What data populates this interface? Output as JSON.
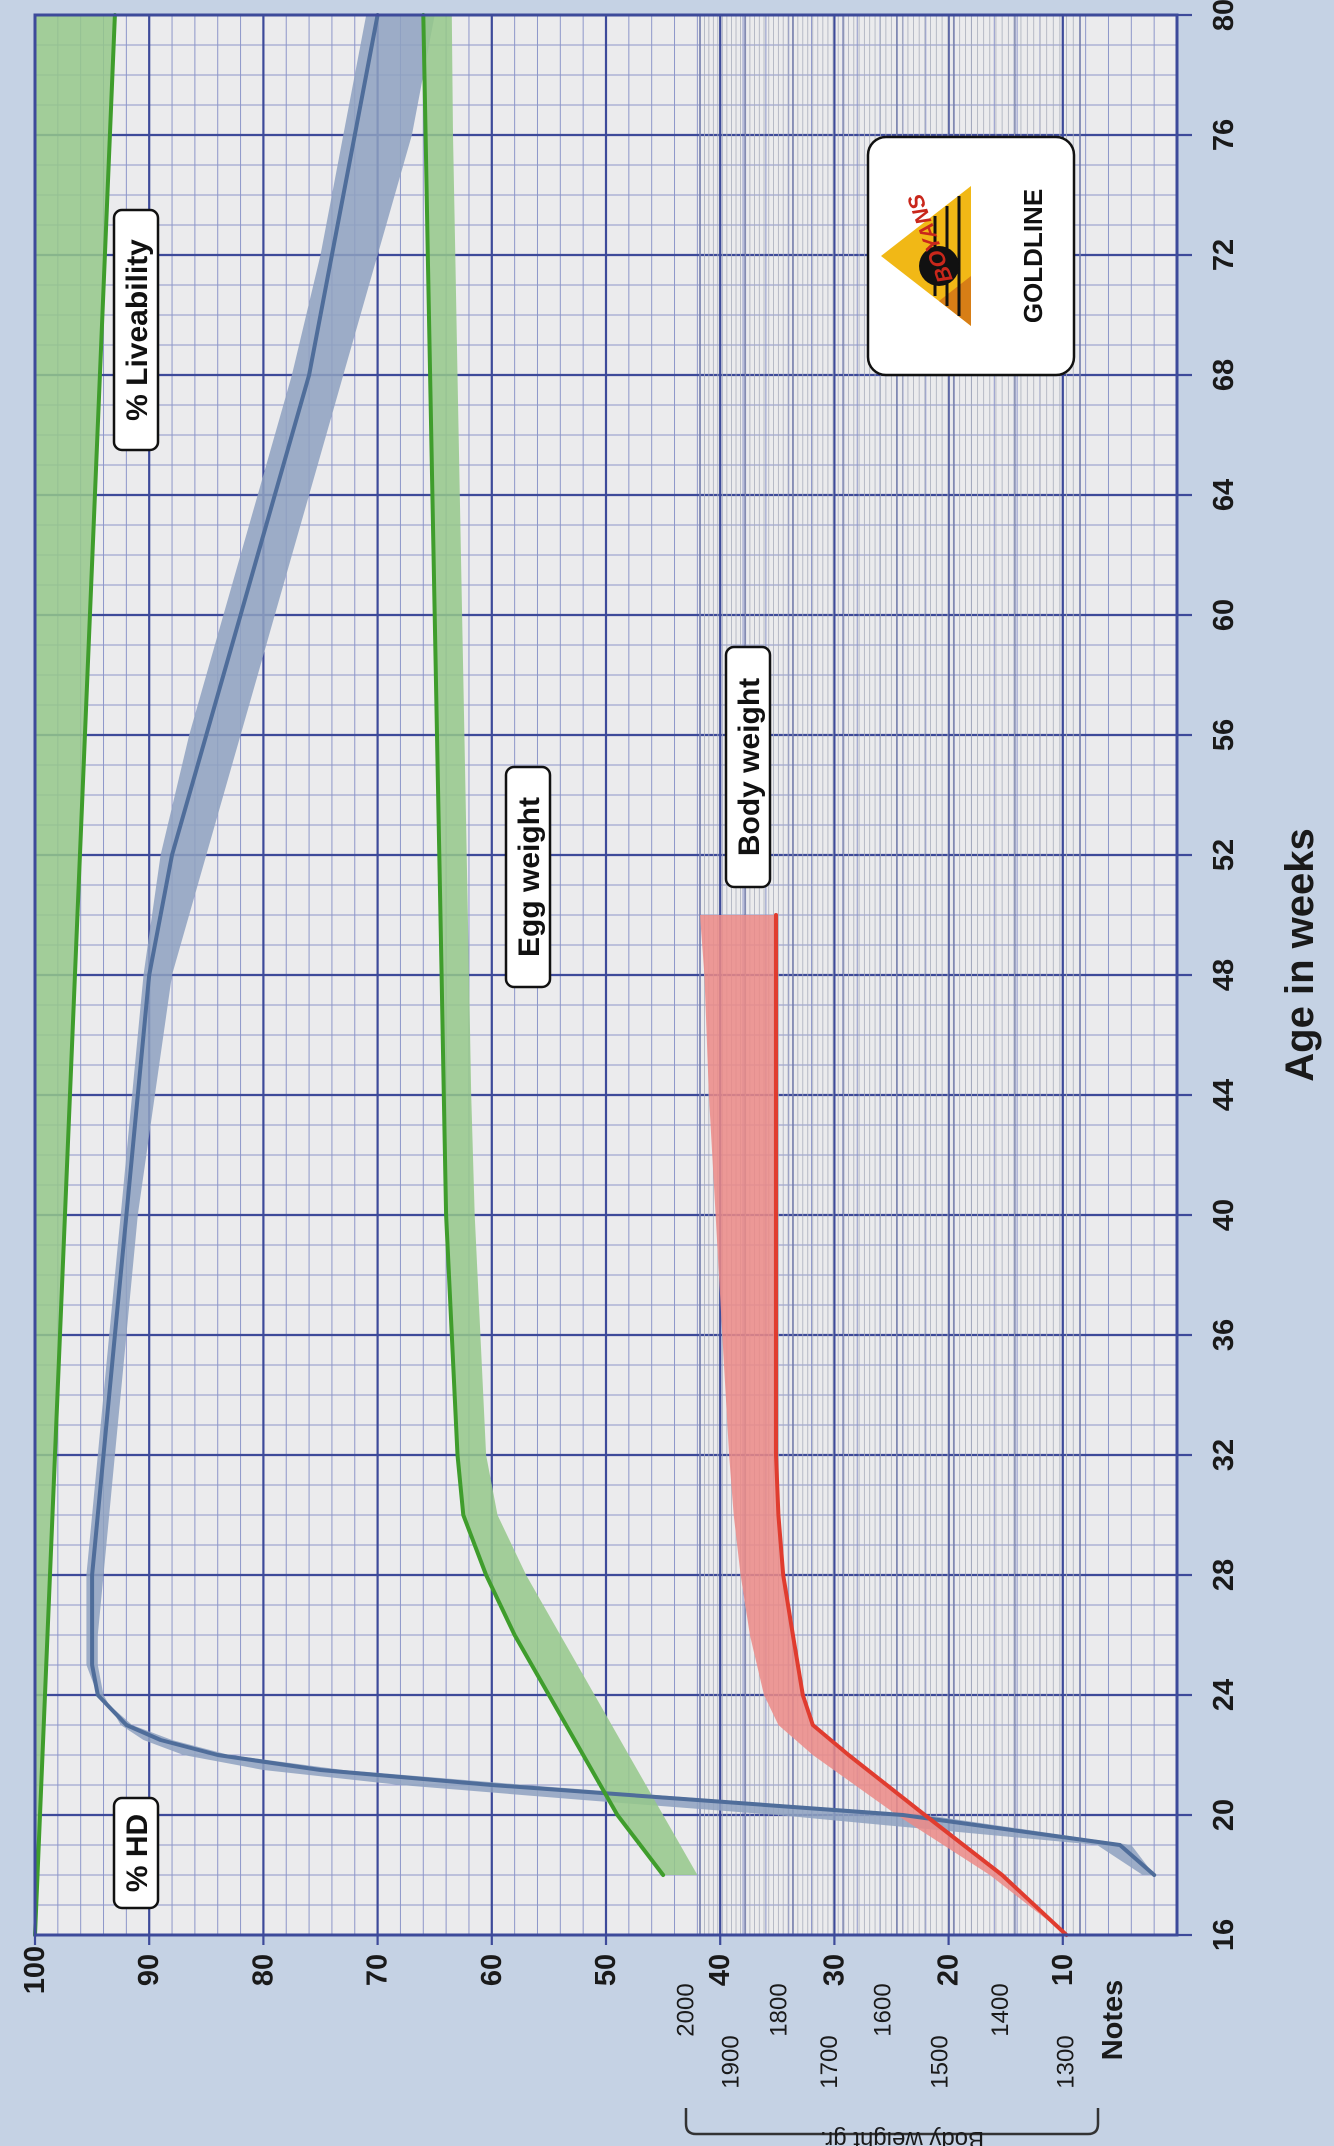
{
  "chart_data": {
    "type": "line",
    "orientation": "rotated-90-ccw",
    "xlabel": "Age in weeks",
    "x_ticks": [
      16,
      20,
      24,
      28,
      32,
      36,
      40,
      44,
      48,
      52,
      56,
      60,
      64,
      68,
      72,
      76,
      80
    ],
    "xlim": [
      16,
      80
    ],
    "y_ticks": [
      100,
      90,
      80,
      70,
      60,
      50,
      40,
      30,
      20,
      10
    ],
    "ylim": [
      0,
      100
    ],
    "body_weight_axis": {
      "label": "Body weight gr.",
      "ticks_inner": [
        2000,
        1800,
        1600,
        1400
      ],
      "ticks_outer": [
        1900,
        1700,
        1500,
        1300
      ]
    },
    "notes_label": "Notes",
    "brand": {
      "name": "BOYANS",
      "line": "GOLDLINE"
    },
    "series": [
      {
        "name": "% HD",
        "color": "#4f6d9a",
        "band_color": "#8ea1c0",
        "x": [
          18,
          19,
          20,
          20.5,
          21,
          21.5,
          22,
          22.5,
          23,
          24,
          25,
          26,
          28,
          32,
          36,
          40,
          44,
          48,
          52,
          56,
          60,
          64,
          68,
          72,
          76,
          80
        ],
        "values": [
          2,
          5,
          24,
          42,
          60,
          75,
          84,
          89,
          92,
          94.5,
          95,
          95,
          95,
          94,
          93,
          92,
          91,
          90,
          88,
          85,
          82,
          79,
          76,
          74,
          72,
          70
        ],
        "band_low": [
          3,
          7,
          35,
          52,
          68,
          80,
          87,
          90.5,
          92.5,
          94,
          94.5,
          94.5,
          94,
          93,
          92,
          91,
          89.5,
          88,
          85,
          82,
          79,
          76,
          73,
          70,
          67,
          65
        ],
        "band_high": [
          2,
          4,
          22,
          40,
          57,
          73,
          83,
          88,
          91.5,
          94.5,
          95.5,
          95.5,
          95.5,
          94.5,
          93.5,
          92.5,
          91.5,
          90.5,
          89,
          86.5,
          83.5,
          80.5,
          77.5,
          75,
          73,
          71
        ]
      },
      {
        "name": "% Liveability",
        "color": "#3f9d2c",
        "band_color": "#95c88a",
        "x": [
          16,
          80
        ],
        "values": [
          100,
          93
        ],
        "band_low": [
          100,
          93
        ],
        "band_high": [
          100,
          100
        ]
      },
      {
        "name": "Egg weight",
        "color": "#3f9d2c",
        "band_color": "#95c88a",
        "x": [
          18,
          20,
          22,
          24,
          26,
          28,
          30,
          32,
          36,
          40,
          44,
          48,
          52,
          56,
          60,
          64,
          68,
          72,
          76,
          80
        ],
        "values": [
          45,
          49,
          52,
          55,
          58,
          60.5,
          62.5,
          63,
          63.5,
          64,
          64.2,
          64.4,
          64.6,
          64.8,
          65,
          65.2,
          65.4,
          65.6,
          65.8,
          66
        ],
        "band_low": [
          42,
          45,
          48,
          51,
          54,
          57,
          59.5,
          60.5,
          61,
          61.5,
          61.8,
          62,
          62.2,
          62.4,
          62.6,
          62.8,
          63,
          63.2,
          63.4,
          63.5
        ],
        "band_high": [
          45,
          49,
          52,
          55,
          58,
          60.5,
          62.5,
          63,
          63.5,
          64,
          64.2,
          64.4,
          64.6,
          64.8,
          65,
          65.2,
          65.4,
          65.6,
          65.8,
          66
        ]
      },
      {
        "name": "Body weight",
        "color": "#e03c2f",
        "band_color": "#ec8a86",
        "x": [
          16,
          18,
          20,
          22,
          23,
          24,
          26,
          28,
          30,
          32,
          36,
          40,
          44,
          48,
          50
        ],
        "values": [
          1320,
          1420,
          1550,
          1690,
          1760,
          1780,
          1800,
          1820,
          1830,
          1835,
          1835,
          1835,
          1835,
          1835,
          1835
        ],
        "band_low": [
          1320,
          1420,
          1550,
          1690,
          1760,
          1780,
          1800,
          1820,
          1830,
          1835,
          1835,
          1835,
          1835,
          1835,
          1835
        ],
        "band_high": [
          1320,
          1440,
          1600,
          1760,
          1830,
          1860,
          1890,
          1910,
          1925,
          1935,
          1950,
          1965,
          1980,
          1990,
          2000
        ]
      }
    ]
  }
}
